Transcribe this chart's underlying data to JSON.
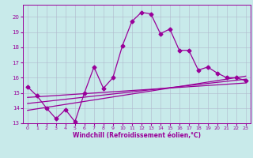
{
  "background_color": "#c8eaea",
  "grid_color": "#b0b8cc",
  "line_color": "#990099",
  "xlabel": "Windchill (Refroidissement éolien,°C)",
  "xlim": [
    -0.5,
    23.5
  ],
  "ylim": [
    13.0,
    20.8
  ],
  "yticks": [
    13,
    14,
    15,
    16,
    17,
    18,
    19,
    20
  ],
  "xticks": [
    0,
    1,
    2,
    3,
    4,
    5,
    6,
    7,
    8,
    9,
    10,
    11,
    12,
    13,
    14,
    15,
    16,
    17,
    18,
    19,
    20,
    21,
    22,
    23
  ],
  "line1_x": [
    0,
    1,
    2,
    3,
    4,
    5,
    6,
    7,
    8,
    9,
    10,
    11,
    12,
    13,
    14,
    15,
    16,
    17,
    18,
    19,
    20,
    21,
    22,
    23
  ],
  "line1_y": [
    15.4,
    14.8,
    14.0,
    13.3,
    13.9,
    13.1,
    15.0,
    16.7,
    15.3,
    16.0,
    18.1,
    19.7,
    20.3,
    20.2,
    18.9,
    19.2,
    17.8,
    17.8,
    16.5,
    16.7,
    16.3,
    16.0,
    16.0,
    15.8
  ],
  "line2_x": [
    0,
    23
  ],
  "line2_y": [
    13.85,
    16.1
  ],
  "line3_x": [
    0,
    23
  ],
  "line3_y": [
    14.3,
    15.9
  ],
  "line4_x": [
    0,
    23
  ],
  "line4_y": [
    14.7,
    15.65
  ],
  "marker": "D",
  "markersize": 2.5,
  "linewidth": 0.9
}
